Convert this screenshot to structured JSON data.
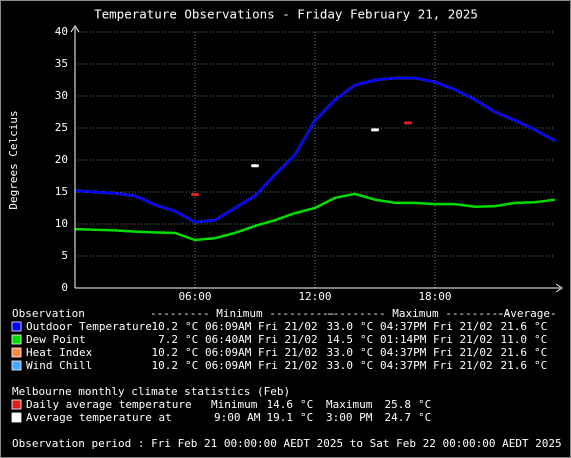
{
  "chart_data": {
    "type": "line",
    "title": "Temperature Observations - Friday February 21, 2025",
    "y_label": "Degrees Celcius",
    "xlim": [
      0,
      24
    ],
    "xticks": [
      {
        "value": 6,
        "label": "06:00"
      },
      {
        "value": 12,
        "label": "12:00"
      },
      {
        "value": 18,
        "label": "18:00"
      }
    ],
    "ylim": [
      0,
      40
    ],
    "yticks": [
      0,
      5,
      10,
      15,
      20,
      25,
      30,
      35,
      40
    ],
    "grid": true,
    "x": [
      0,
      1,
      2,
      3,
      4,
      5,
      6,
      7,
      8,
      9,
      10,
      11,
      12,
      13,
      14,
      15,
      16,
      17,
      18,
      19,
      20,
      21,
      22,
      23,
      24
    ],
    "series": [
      {
        "name": "Outdoor Temperature",
        "color": "#0000ff",
        "values": [
          15.2,
          15.0,
          14.8,
          14.4,
          13.0,
          12.0,
          10.3,
          10.6,
          12.5,
          14.4,
          17.7,
          20.8,
          26.2,
          29.4,
          31.7,
          32.5,
          32.8,
          32.8,
          32.2,
          31.0,
          29.4,
          27.5,
          26.2,
          24.7,
          23.0
        ]
      },
      {
        "name": "Dew Point",
        "color": "#00dd00",
        "values": [
          9.2,
          9.1,
          9.0,
          8.8,
          8.7,
          8.6,
          7.5,
          7.8,
          8.6,
          9.7,
          10.6,
          11.7,
          12.5,
          14.1,
          14.7,
          13.8,
          13.3,
          13.3,
          13.1,
          13.1,
          12.7,
          12.8,
          13.3,
          13.4,
          13.8
        ]
      },
      {
        "name": "Heat Index",
        "color": "#ff8844",
        "values": [
          15.2,
          15.0,
          14.8,
          14.4,
          13.0,
          12.0,
          10.3,
          10.6,
          12.5,
          14.4,
          17.7,
          20.8,
          26.2,
          29.4,
          31.7,
          32.5,
          32.8,
          32.8,
          32.2,
          31.0,
          29.4,
          27.5,
          26.2,
          24.7,
          23.0
        ]
      },
      {
        "name": "Wind Chill",
        "color": "#44aaff",
        "values": [
          15.2,
          15.0,
          14.8,
          14.4,
          13.0,
          12.0,
          10.3,
          10.6,
          12.5,
          14.4,
          17.7,
          20.8,
          26.2,
          29.4,
          31.7,
          32.5,
          32.8,
          32.8,
          32.2,
          31.0,
          29.4,
          27.5,
          26.2,
          24.7,
          23.0
        ]
      }
    ]
  },
  "observations": {
    "header": [
      "Observation",
      "--------- Minimum ----------",
      "--------- Maximum ----------",
      "-Average-"
    ],
    "unit": "°C",
    "rows": [
      {
        "min": "10.2",
        "min_time": "06:09AM Fri 21/02",
        "max": "33.0",
        "max_time": "04:37PM Fri 21/02",
        "avg": "21.6"
      },
      {
        "min": "7.2",
        "min_time": "06:40AM Fri 21/02",
        "max": "14.5",
        "max_time": "01:14PM Fri 21/02",
        "avg": "11.0"
      },
      {
        "min": "10.2",
        "min_time": "06:09AM Fri 21/02",
        "max": "33.0",
        "max_time": "04:37PM Fri 21/02",
        "avg": "21.6"
      },
      {
        "min": "10.2",
        "min_time": "06:09AM Fri 21/02",
        "max": "33.0",
        "max_time": "04:37PM Fri 21/02",
        "avg": "21.6"
      }
    ]
  },
  "climate": {
    "title": "Melbourne monthly climate statistics (Feb)",
    "unit": "°C",
    "daily": {
      "label": "Daily average temperature",
      "color": "#e02020",
      "min_label": "Minimum",
      "min": 14.6,
      "max_label": "Maximum",
      "max": 25.8,
      "x": [
        6,
        16.65
      ]
    },
    "average": {
      "label": "Average temperature at",
      "color": "#ffffff",
      "times": [
        "9:00 AM",
        "3:00 PM"
      ],
      "values": [
        19.1,
        24.7
      ],
      "x": [
        9,
        15
      ]
    }
  },
  "footer": "Observation period : Fri Feb 21 00:00:00 AEDT 2025 to Sat Feb 22 00:00:00 AEDT 2025"
}
